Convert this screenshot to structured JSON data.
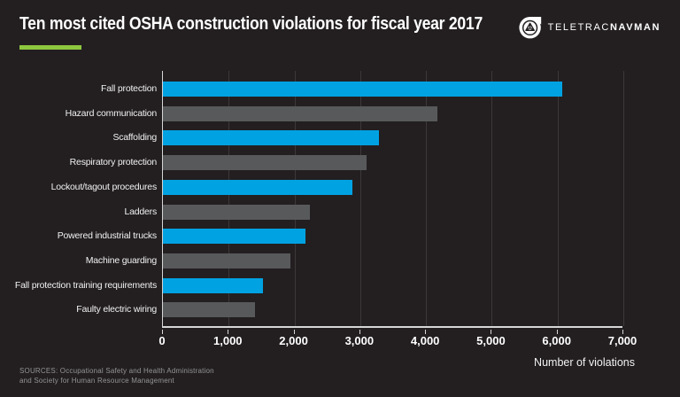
{
  "header": {
    "title": "Ten most cited OSHA construction violations for fiscal year 2017"
  },
  "logo": {
    "icon": "teletrac-navman-emblem",
    "text_primary": "TELETRAC",
    "text_secondary": "NAVMAN"
  },
  "chart_data": {
    "type": "bar",
    "orientation": "horizontal",
    "title": "Ten most cited OSHA construction violations for fiscal year 2017",
    "categories": [
      "Fall protection",
      "Hazard communication",
      "Scaffolding",
      "Respiratory protection",
      "Lockout/tagout procedures",
      "Ladders",
      "Powered industrial trucks",
      "Machine guarding",
      "Fall protection training requirements",
      "Faulty electric wiring"
    ],
    "values": [
      6072,
      4176,
      3288,
      3097,
      2877,
      2241,
      2162,
      1933,
      1523,
      1405
    ],
    "bar_colors": [
      "#00a2e2",
      "#58595b",
      "#00a2e2",
      "#58595b",
      "#00a2e2",
      "#58595b",
      "#00a2e2",
      "#58595b",
      "#00a2e2",
      "#58595b"
    ],
    "xlabel": "Number of violations",
    "xlim": [
      0,
      7000
    ],
    "x_ticks": [
      0,
      1000,
      2000,
      3000,
      4000,
      5000,
      6000,
      7000
    ],
    "x_tick_labels": [
      "0",
      "1,000",
      "2,000",
      "3,000",
      "4,000",
      "5,000",
      "6,000",
      "7,000"
    ],
    "grid": true,
    "legend": false
  },
  "footer": {
    "sources": [
      "SOURCES: Occupational Safety and Health Administration",
      "and Society for Human Resource Management"
    ]
  },
  "colors": {
    "background": "#231f20",
    "bar_highlight": "#00a2e2",
    "bar_muted": "#58595b",
    "accent_green": "#8dc63f",
    "axis_line": "#d6d6d6",
    "gridline": "#3c3839",
    "text_primary": "#ffffff",
    "text_muted": "#949494"
  }
}
